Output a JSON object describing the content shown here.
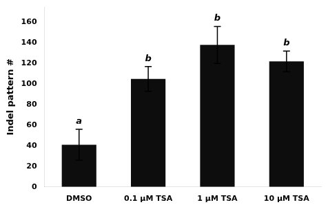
{
  "chart_data": {
    "type": "bar",
    "categories": [
      "DMSO",
      "0.1 μM TSA",
      "1 μM TSA",
      "10 μM TSA"
    ],
    "values": [
      41,
      105,
      138,
      122
    ],
    "errors": [
      15,
      12,
      18,
      10
    ],
    "color": "#0d0d0d",
    "ylabel": "Indel pattern #",
    "ylim": [
      0,
      175
    ],
    "yticks": [
      0,
      20,
      40,
      60,
      80,
      100,
      120,
      140,
      160
    ],
    "annotations": [
      {
        "category": "DMSO",
        "text": "a"
      },
      {
        "category": "0.1 μM TSA",
        "text": "b"
      },
      {
        "category": "1 μM TSA",
        "text": "b"
      },
      {
        "category": "10 μM TSA",
        "text": "b"
      }
    ],
    "grid": false
  }
}
